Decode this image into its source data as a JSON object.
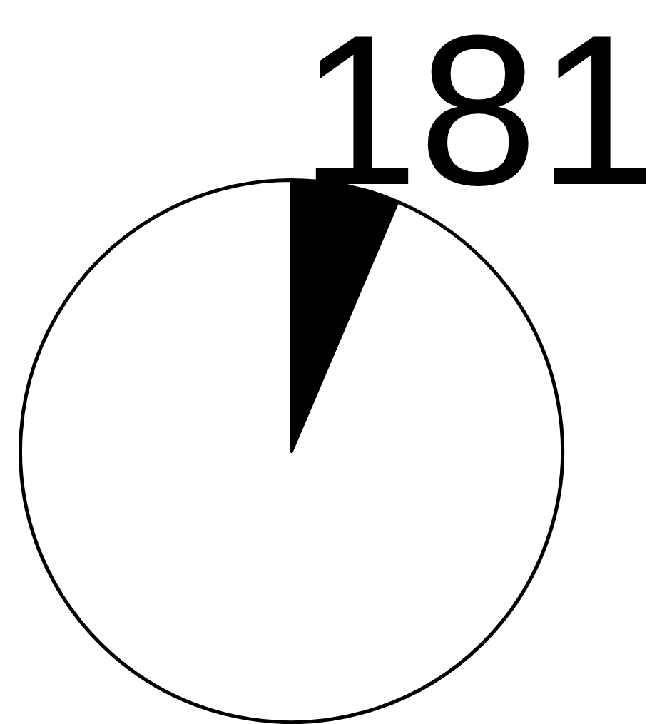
{
  "chart_data": {
    "type": "pie",
    "title": "181",
    "categories": [
      null,
      null
    ],
    "values": [
      6.4,
      93.6
    ],
    "colors": [
      "#000000",
      "#ffffff"
    ]
  }
}
